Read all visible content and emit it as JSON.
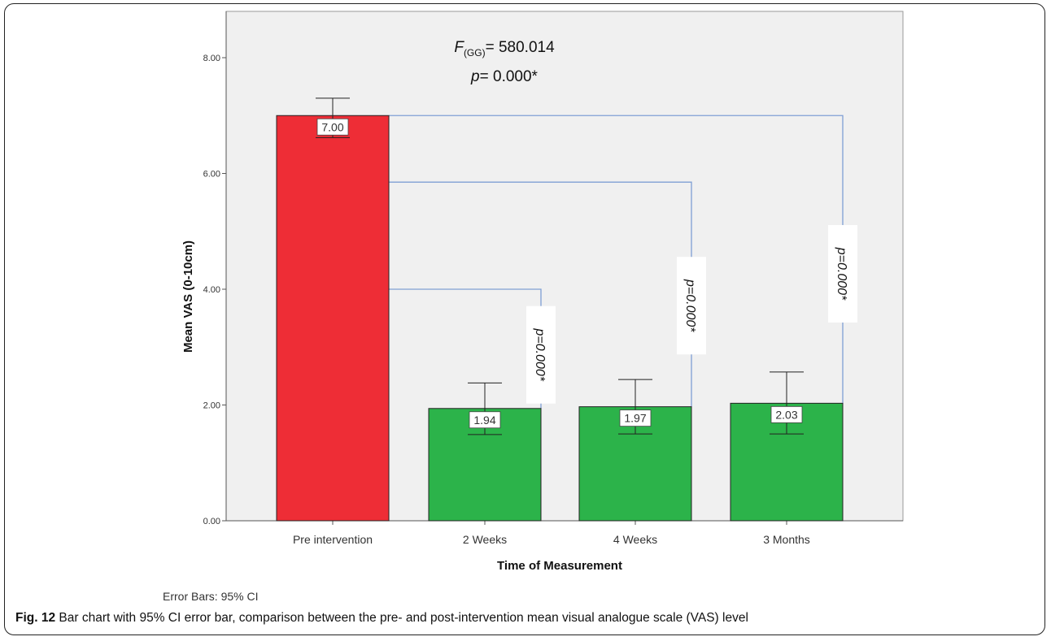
{
  "chart_data": {
    "type": "bar",
    "categories": [
      "Pre intervention",
      "2 Weeks",
      "4 Weeks",
      "3 Months"
    ],
    "values": [
      7.0,
      1.94,
      1.97,
      2.03
    ],
    "value_labels": [
      "7.00",
      "1.94",
      "1.97",
      "2.03"
    ],
    "ci": [
      [
        6.62,
        7.3
      ],
      [
        1.49,
        2.38
      ],
      [
        1.5,
        2.44
      ],
      [
        1.5,
        2.57
      ]
    ],
    "bar_colors": [
      "#ee2d36",
      "#2cb34a",
      "#2cb34a",
      "#2cb34a"
    ],
    "xlabel": "Time of Measurement",
    "ylabel": "Mean VAS (0-10cm)",
    "ylim": [
      0,
      8.8
    ],
    "yticks": [
      0,
      2,
      4,
      6,
      8
    ],
    "ytick_labels": [
      "0.00",
      "2.00",
      "4.00",
      "6.00",
      "8.00"
    ],
    "grid": false,
    "background": "#f0f0f0",
    "bracket_color": "#7f9fd4",
    "comparisons": [
      {
        "from": 0,
        "to": 1,
        "level": 4.0,
        "label": "p=0.000*"
      },
      {
        "from": 0,
        "to": 2,
        "level": 5.85,
        "label": "p=0.000*"
      },
      {
        "from": 0,
        "to": 3,
        "level": 7.0,
        "label": "p=0.000*"
      }
    ],
    "annotation": {
      "f_symbol": "F",
      "f_subscript": "(GG)",
      "f_value": "= 580.014",
      "p_symbol": "p",
      "p_value": "= 0.000*"
    },
    "note": "Error Bars: 95% CI"
  },
  "caption": {
    "label": "Fig. 12",
    "text": " Bar chart with 95% CI error bar, comparison between the pre- and post-intervention mean visual analogue scale (VAS) level"
  }
}
